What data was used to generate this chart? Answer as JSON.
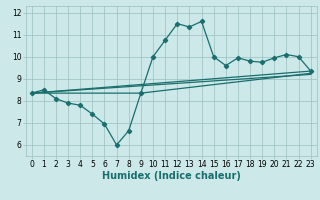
{
  "xlabel": "Humidex (Indice chaleur)",
  "bg_color": "#cce8e8",
  "grid_color": "#9bbfbf",
  "line_color": "#1a6e6e",
  "xlim": [
    -0.5,
    23.5
  ],
  "ylim": [
    5.5,
    12.3
  ],
  "yticks": [
    6,
    7,
    8,
    9,
    10,
    11,
    12
  ],
  "xticks": [
    0,
    1,
    2,
    3,
    4,
    5,
    6,
    7,
    8,
    9,
    10,
    11,
    12,
    13,
    14,
    15,
    16,
    17,
    18,
    19,
    20,
    21,
    22,
    23
  ],
  "line1_x": [
    0,
    1,
    2,
    3,
    4,
    5,
    6,
    7,
    8,
    9,
    10,
    11,
    12,
    13,
    14,
    15,
    16,
    17,
    18,
    19,
    20,
    21,
    22,
    23
  ],
  "line1_y": [
    8.35,
    8.5,
    8.1,
    7.9,
    7.8,
    7.4,
    6.95,
    6.0,
    6.65,
    8.35,
    10.0,
    10.75,
    11.5,
    11.35,
    11.6,
    10.0,
    9.6,
    9.95,
    9.8,
    9.75,
    9.95,
    10.1,
    10.0,
    9.35
  ],
  "line2_x": [
    0,
    23
  ],
  "line2_y": [
    8.35,
    9.35
  ],
  "line3_x": [
    0,
    23
  ],
  "line3_y": [
    8.35,
    9.2
  ],
  "line4_x": [
    0,
    9,
    23
  ],
  "line4_y": [
    8.35,
    8.35,
    9.25
  ],
  "marker": "D",
  "marker_size": 2.2,
  "linewidth": 0.9,
  "tick_fontsize": 5.5,
  "label_fontsize": 7.0
}
